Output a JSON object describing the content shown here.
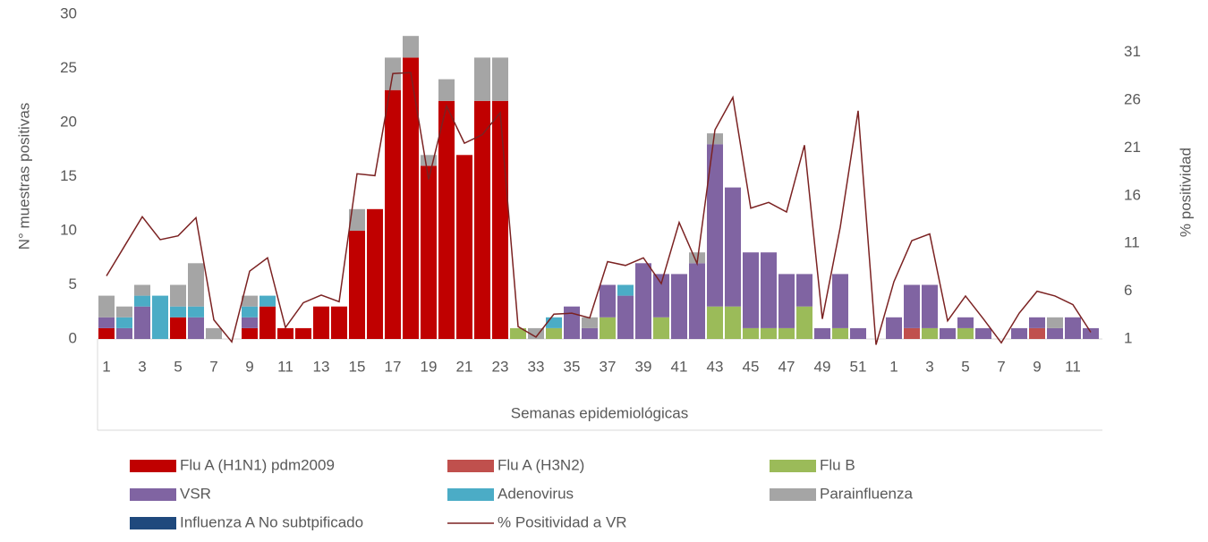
{
  "chart_data": {
    "type": "bar",
    "stacked": true,
    "y_label": "N° muestras positivas",
    "y2_label": "% positividad",
    "x_label": "Semanas epidemiológicas",
    "categories": [
      "1",
      null,
      "3",
      null,
      "5",
      null,
      "7",
      null,
      "9",
      null,
      "11",
      null,
      "13",
      null,
      "15",
      null,
      "17",
      null,
      "19",
      null,
      "21",
      null,
      "23",
      null,
      "33",
      null,
      "35",
      null,
      "37",
      null,
      "39",
      null,
      "41",
      null,
      "43",
      null,
      "45",
      null,
      "47",
      null,
      "49",
      null,
      "51",
      null,
      "1",
      null,
      "3",
      null,
      "5",
      null,
      "7",
      null,
      "9",
      null,
      "11",
      null
    ],
    "ylim": [
      0,
      30
    ],
    "yticks": [
      0,
      5,
      10,
      15,
      20,
      25,
      30
    ],
    "y2lim": [
      1,
      35
    ],
    "y2ticks": [
      1,
      6,
      11,
      16,
      21,
      26,
      31
    ],
    "series": [
      {
        "name": "Flu A (H1N1) pdm2009",
        "color": "#c00000",
        "values": [
          1,
          0,
          0,
          0,
          2,
          0,
          0,
          0,
          1,
          3,
          1,
          1,
          3,
          3,
          10,
          12,
          23,
          26,
          16,
          22,
          17,
          22,
          22,
          0,
          0,
          0,
          0,
          0,
          0,
          0,
          0,
          0,
          0,
          0,
          0,
          0,
          0,
          0,
          0,
          0,
          0,
          0,
          0,
          0,
          0,
          0,
          0,
          0,
          0,
          0,
          0,
          0,
          0,
          0,
          0,
          0
        ]
      },
      {
        "name": "Flu A (H3N2)",
        "color": "#c0504d",
        "values": [
          0,
          0,
          0,
          0,
          0,
          0,
          0,
          0,
          0,
          0,
          0,
          0,
          0,
          0,
          0,
          0,
          0,
          0,
          0,
          0,
          0,
          0,
          0,
          0,
          0,
          0,
          0,
          0,
          0,
          0,
          0,
          0,
          0,
          0,
          0,
          0,
          0,
          0,
          0,
          0,
          0,
          0,
          0,
          0,
          0,
          1,
          0,
          0,
          0,
          0,
          0,
          0,
          1,
          0,
          0,
          0
        ]
      },
      {
        "name": "Flu B",
        "color": "#9bbb59",
        "values": [
          0,
          0,
          0,
          0,
          0,
          0,
          0,
          0,
          0,
          0,
          0,
          0,
          0,
          0,
          0,
          0,
          0,
          0,
          0,
          0,
          0,
          0,
          0,
          1,
          0,
          1,
          0,
          0,
          2,
          0,
          0,
          2,
          0,
          0,
          3,
          3,
          1,
          1,
          1,
          3,
          0,
          1,
          0,
          0,
          0,
          0,
          1,
          0,
          1,
          0,
          0,
          0,
          0,
          0,
          0,
          0
        ]
      },
      {
        "name": "VSR",
        "color": "#8064a2",
        "values": [
          1,
          1,
          3,
          0,
          0,
          2,
          0,
          0,
          1,
          0,
          0,
          0,
          0,
          0,
          0,
          0,
          0,
          0,
          0,
          0,
          0,
          0,
          0,
          0,
          0,
          0,
          3,
          1,
          3,
          4,
          7,
          4,
          6,
          7,
          15,
          11,
          7,
          7,
          5,
          3,
          1,
          5,
          1,
          0,
          2,
          4,
          4,
          1,
          1,
          1,
          0,
          1,
          1,
          1,
          2,
          1
        ]
      },
      {
        "name": "Adenovirus",
        "color": "#4bacc6",
        "values": [
          0,
          1,
          1,
          4,
          1,
          1,
          0,
          0,
          1,
          1,
          0,
          0,
          0,
          0,
          0,
          0,
          0,
          0,
          0,
          0,
          0,
          0,
          0,
          0,
          0,
          1,
          0,
          0,
          0,
          1,
          0,
          0,
          0,
          0,
          0,
          0,
          0,
          0,
          0,
          0,
          0,
          0,
          0,
          0,
          0,
          0,
          0,
          0,
          0,
          0,
          0,
          0,
          0,
          0,
          0,
          0
        ]
      },
      {
        "name": "Parainfluenza",
        "color": "#a5a5a5",
        "values": [
          2,
          1,
          1,
          0,
          2,
          4,
          1,
          0,
          1,
          0,
          0,
          0,
          0,
          0,
          2,
          0,
          3,
          2,
          1,
          2,
          0,
          4,
          4,
          0,
          1,
          0,
          0,
          1,
          0,
          0,
          0,
          0,
          0,
          1,
          1,
          0,
          0,
          0,
          0,
          0,
          0,
          0,
          0,
          0,
          0,
          0,
          0,
          0,
          0,
          0,
          0,
          0,
          0,
          1,
          0,
          0
        ]
      },
      {
        "name": "Influenza A No subtpificado",
        "color": "#1f497d",
        "values": [
          0,
          0,
          0,
          0,
          0,
          0,
          0,
          0,
          0,
          0,
          0,
          0,
          0,
          0,
          0,
          0,
          0,
          0,
          0,
          0,
          0,
          0,
          0,
          0,
          0,
          0,
          0,
          0,
          0,
          0,
          0,
          0,
          0,
          0,
          0,
          0,
          0,
          0,
          0,
          0,
          0,
          0,
          0,
          0,
          0,
          0,
          0,
          0,
          0,
          0,
          0,
          0,
          0,
          0,
          0,
          0
        ]
      },
      {
        "name": "% Positividad a VR",
        "color": "#7b2222",
        "type": "line",
        "axis": "y2",
        "values": [
          7.6,
          10.7,
          13.8,
          11.4,
          11.8,
          13.7,
          3.0,
          0.7,
          8.1,
          9.5,
          2.2,
          4.8,
          5.6,
          4.9,
          18.3,
          18.1,
          28.8,
          28.9,
          17.7,
          25.4,
          21.5,
          22.4,
          24.7,
          2.3,
          1.2,
          3.6,
          3.7,
          3.2,
          9.1,
          8.7,
          9.5,
          6.8,
          13.2,
          8.9,
          22.9,
          26.3,
          14.7,
          15.3,
          14.3,
          21.3,
          3.1,
          12.7,
          24.9,
          0.4,
          7.0,
          11.3,
          12.0,
          2.9,
          5.5,
          3.1,
          0.6,
          3.7,
          6.0,
          5.5,
          4.6,
          1.7
        ]
      }
    ]
  }
}
